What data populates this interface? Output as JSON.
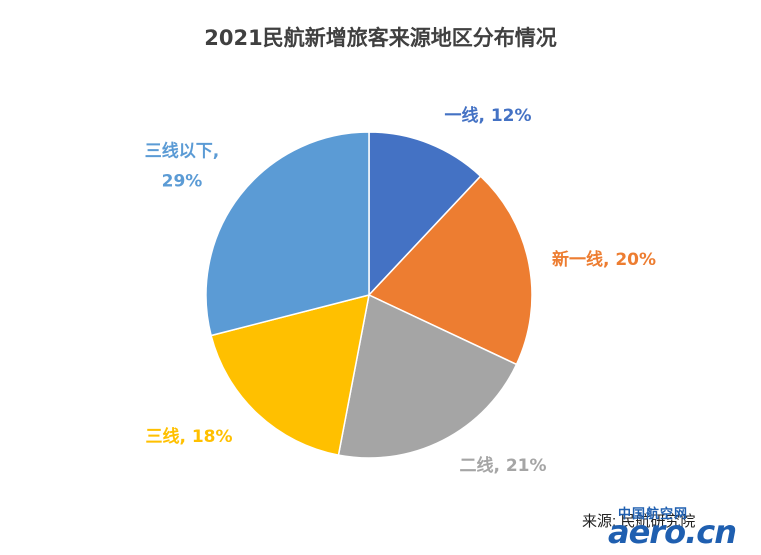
{
  "chart_data": {
    "type": "pie",
    "title": "2021民航新增旅客来源地区分布情况",
    "slices": [
      {
        "label": "一线",
        "value": 12,
        "display": "一线, 12%",
        "color": "#4472c4"
      },
      {
        "label": "新一线",
        "value": 20,
        "display": "新一线, 20%",
        "color": "#ed7d31"
      },
      {
        "label": "二线",
        "value": 21,
        "display": "二线, 21%",
        "color": "#a5a5a5"
      },
      {
        "label": "三线",
        "value": 18,
        "display": "三线, 18%",
        "color": "#ffc000"
      },
      {
        "label": "三线以下",
        "value": 29,
        "display_lines": [
          "三线以下,",
          "29%"
        ],
        "color": "#5b9bd5"
      }
    ],
    "start_angle": "12 o'clock",
    "direction": "clockwise",
    "legend": "none"
  },
  "source_note": "来源: 民航研究院",
  "watermark": {
    "top": "中国航空网",
    "main": "aero.cn"
  }
}
